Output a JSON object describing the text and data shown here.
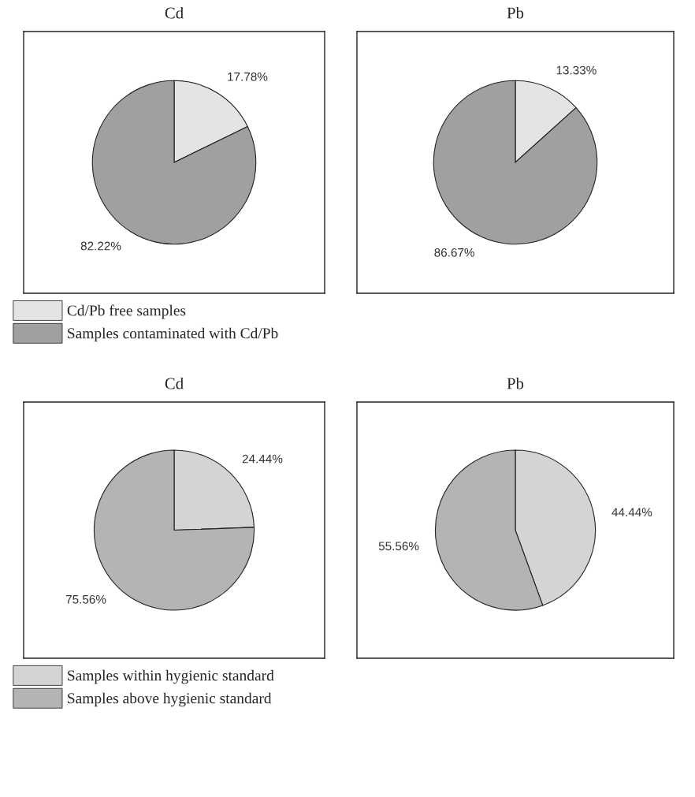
{
  "chart_data": [
    {
      "type": "pie",
      "title": "Cd",
      "categories": [
        "Cd/Pb free samples",
        "Samples contaminated with Cd/Pb"
      ],
      "values": [
        17.78,
        82.22
      ],
      "value_labels": [
        "17.78%",
        "82.22%"
      ],
      "colors": [
        "#e4e4e4",
        "#a0a0a0"
      ],
      "legend": "bottom"
    },
    {
      "type": "pie",
      "title": "Pb",
      "categories": [
        null,
        null
      ],
      "values": [
        13.33,
        86.67
      ],
      "value_labels": [
        "13.33%",
        "86.67%"
      ],
      "colors": [
        "#e4e4e4",
        "#a0a0a0"
      ]
    },
    {
      "type": "pie",
      "title": "Cd",
      "categories": [
        "Samples within hygienic standard",
        "Samples above hygienic standard"
      ],
      "values": [
        24.44,
        75.56
      ],
      "value_labels": [
        "24.44%",
        "75.56%"
      ],
      "colors": [
        "#d4d4d4",
        "#b4b4b4"
      ],
      "legend": "bottom"
    },
    {
      "type": "pie",
      "title": "Pb",
      "categories": [
        null,
        null
      ],
      "values": [
        44.44,
        55.56
      ],
      "value_labels": [
        "44.44%",
        "55.56%"
      ],
      "colors": [
        "#d4d4d4",
        "#b4b4b4"
      ]
    }
  ]
}
